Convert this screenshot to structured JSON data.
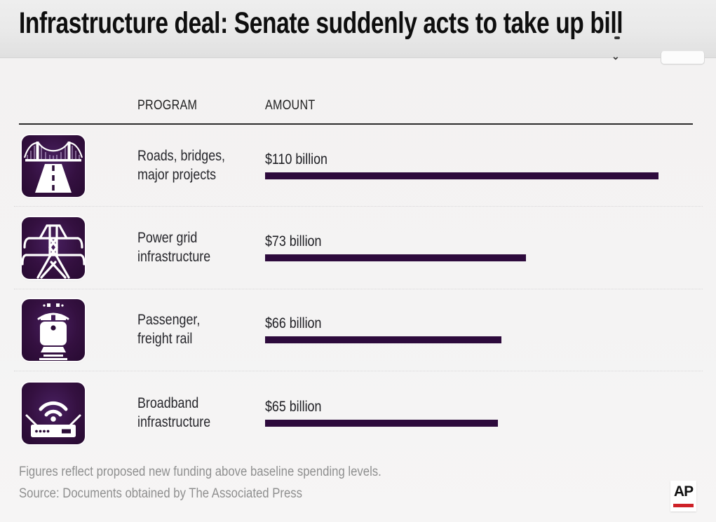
{
  "title": "Infrastructure deal: Senate suddenly acts to take up bill",
  "remnants": {
    "chevron_glyph": "⌄"
  },
  "table": {
    "headers": {
      "program": "PROGRAM",
      "amount": "AMOUNT"
    },
    "rows": [
      {
        "icon": "bridge-road-icon",
        "program_line1": "Roads, bridges,",
        "program_line2": "major projects",
        "amount": "$110 billion"
      },
      {
        "icon": "power-grid-icon",
        "program_line1": "Power grid",
        "program_line2": "infrastructure",
        "amount": "$73 billion"
      },
      {
        "icon": "train-icon",
        "program_line1": "Passenger,",
        "program_line2": "freight rail",
        "amount": "$66 billion"
      },
      {
        "icon": "router-wifi-icon",
        "program_line1": "Broadband",
        "program_line2": "infrastructure",
        "amount": "$65 billion"
      }
    ]
  },
  "footer": {
    "note": "Figures reflect proposed new funding above baseline spending levels.",
    "source": "Source: Documents obtained by The Associated Press"
  },
  "logo": {
    "text": "AP"
  },
  "colors": {
    "bar": "#2d0a3c",
    "icon_background": "#341040",
    "ap_red": "#ce2127",
    "footnote_gray": "#8f8f8f"
  },
  "chart_data": {
    "type": "bar",
    "orientation": "horizontal",
    "title": "Infrastructure deal: Senate suddenly acts to take up bill",
    "categories": [
      "Roads, bridges, major projects",
      "Power grid infrastructure",
      "Passenger, freight rail",
      "Broadband infrastructure"
    ],
    "values": [
      110,
      73,
      66,
      65
    ],
    "value_labels": [
      "$110 billion",
      "$73 billion",
      "$66 billion",
      "$65 billion"
    ],
    "unit": "billion USD",
    "xlim": [
      0,
      110
    ],
    "grid": false,
    "legend": false,
    "bar_color": "#2d0a3c",
    "note": "Figures reflect proposed new funding above baseline spending levels.",
    "source": "Source: Documents obtained by The Associated Press"
  }
}
